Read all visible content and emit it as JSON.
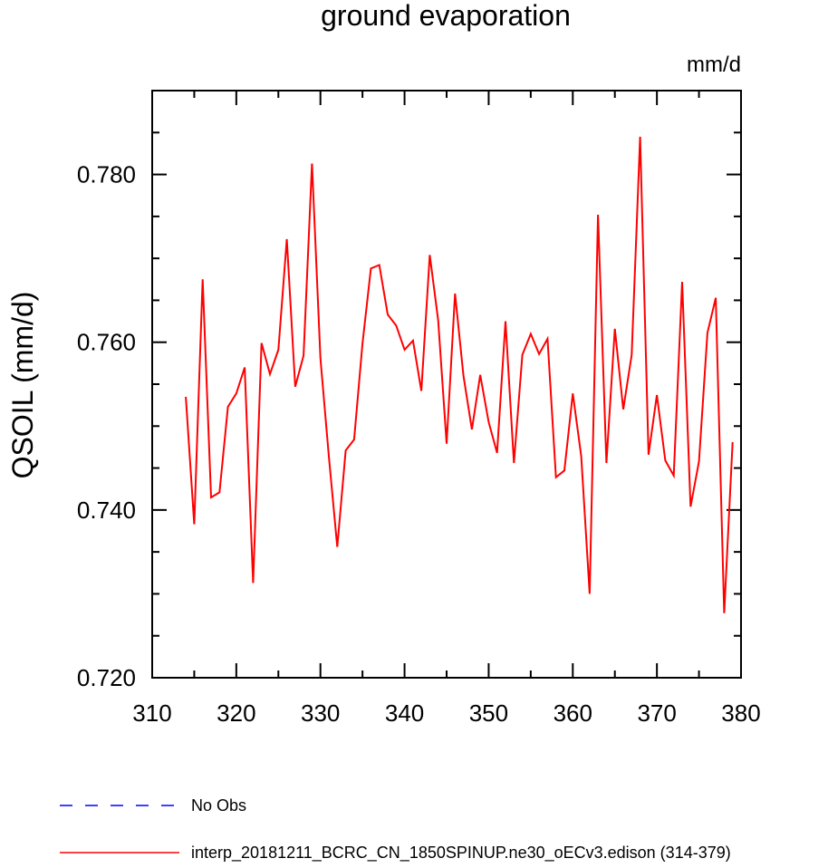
{
  "chart_data": {
    "type": "line",
    "title": "ground evaporation",
    "units_label": "mm/d",
    "ylabel": "QSOIL  (mm/d)",
    "xlabel": "",
    "xlim": [
      310,
      380
    ],
    "ylim": [
      0.72,
      0.79
    ],
    "x_ticks": [
      310,
      320,
      330,
      340,
      350,
      360,
      370,
      380
    ],
    "x_tick_labels": [
      "310",
      "320",
      "330",
      "340",
      "350",
      "360",
      "370",
      "380"
    ],
    "y_ticks": [
      0.72,
      0.74,
      0.76,
      0.78
    ],
    "y_tick_labels": [
      "0.720",
      "0.740",
      "0.760",
      "0.780"
    ],
    "grid": false,
    "legend_position": "bottom-left",
    "series": [
      {
        "name": "interp_20181211_BCRC_CN_1850SPINUP.ne30_oECv3.edison (314-379)",
        "color": "#ff0000",
        "style": "solid",
        "x": [
          314,
          315,
          316,
          317,
          318,
          319,
          320,
          321,
          322,
          323,
          324,
          325,
          326,
          327,
          328,
          329,
          330,
          331,
          332,
          333,
          334,
          335,
          336,
          337,
          338,
          339,
          340,
          341,
          342,
          343,
          344,
          345,
          346,
          347,
          348,
          349,
          350,
          351,
          352,
          353,
          354,
          355,
          356,
          357,
          358,
          359,
          360,
          361,
          362,
          363,
          364,
          365,
          366,
          367,
          368,
          369,
          370,
          371,
          372,
          373,
          374,
          375,
          376,
          377,
          378,
          379
        ],
        "values": [
          0.7535,
          0.7383,
          0.7675,
          0.7415,
          0.7421,
          0.7523,
          0.7539,
          0.757,
          0.7313,
          0.7599,
          0.7562,
          0.7591,
          0.7723,
          0.7547,
          0.7584,
          0.7813,
          0.7581,
          0.7464,
          0.7356,
          0.7471,
          0.7484,
          0.7598,
          0.7688,
          0.7692,
          0.7633,
          0.762,
          0.7591,
          0.7602,
          0.7542,
          0.7704,
          0.7626,
          0.7479,
          0.7658,
          0.756,
          0.7496,
          0.7561,
          0.7505,
          0.7468,
          0.7625,
          0.7456,
          0.7585,
          0.761,
          0.7586,
          0.7604,
          0.7439,
          0.7447,
          0.7539,
          0.7464,
          0.73,
          0.7752,
          0.7456,
          0.7616,
          0.752,
          0.7585,
          0.7845,
          0.7466,
          0.7537,
          0.7459,
          0.7441,
          0.7672,
          0.7404,
          0.7458,
          0.7611,
          0.7653,
          0.7277,
          0.7481
        ]
      },
      {
        "name": "No Obs",
        "color": "#0000ff",
        "style": "dashed",
        "x": [],
        "values": []
      }
    ]
  }
}
